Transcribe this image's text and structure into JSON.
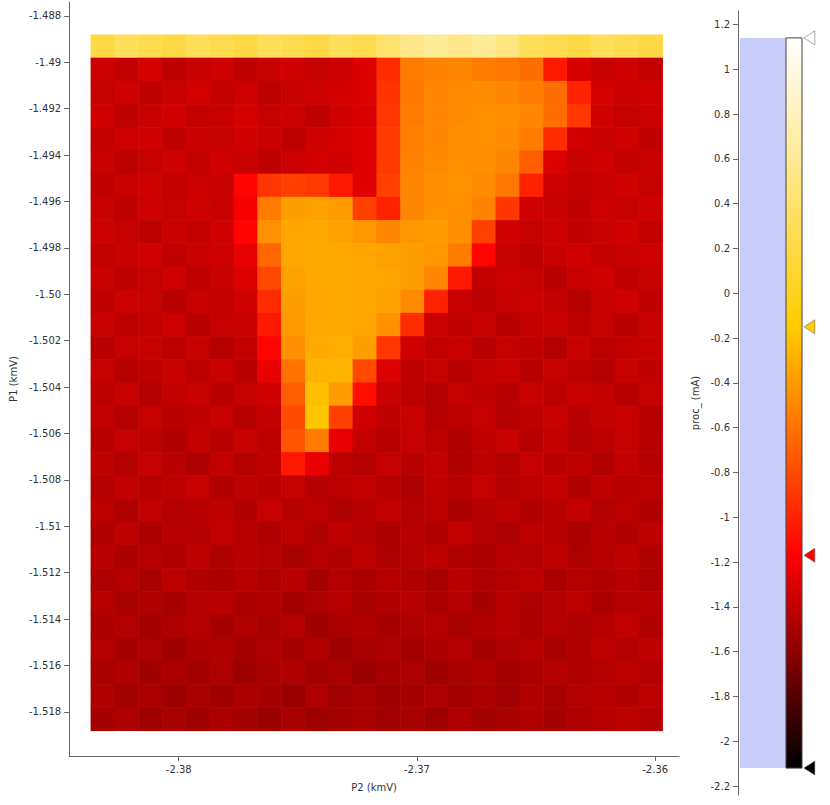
{
  "chart_data": {
    "type": "heatmap",
    "xlabel": "P2 (kmV)",
    "ylabel": "P1 (kmV)",
    "xlim": [
      -2.3846,
      -2.359
    ],
    "ylim": [
      -1.5199,
      -1.4874
    ],
    "xticks": [
      -2.38,
      -2.37,
      -2.36
    ],
    "yticks": [
      -1.488,
      -1.49,
      -1.492,
      -1.494,
      -1.496,
      -1.498,
      {
        "value": -1.5,
        "label": "-1.50"
      },
      -1.502,
      -1.504,
      -1.506,
      -1.508,
      -1.51,
      -1.512,
      -1.514,
      -1.516,
      -1.518
    ],
    "x": [
      -2.3832,
      -2.3822,
      -2.3812,
      -2.3802,
      -2.3792,
      -2.3782,
      -2.3772,
      -2.3762,
      -2.3752,
      -2.3742,
      -2.3732,
      -2.3722,
      -2.3712,
      -2.3702,
      -2.3692,
      -2.3682,
      -2.3672,
      -2.3662,
      -2.3652,
      -2.3642,
      -2.3632,
      -2.3622,
      -2.3612,
      -2.3602
    ],
    "y": [
      -1.4893,
      -1.4903,
      -1.4913,
      -1.4923,
      -1.4933,
      -1.4943,
      -1.4953,
      -1.4963,
      -1.4973,
      -1.4983,
      -1.4993,
      -1.5003,
      -1.5013,
      -1.5023,
      -1.5033,
      -1.5043,
      -1.5053,
      -1.5063,
      -1.5073,
      -1.5083,
      -1.5093,
      -1.5103,
      -1.5113,
      -1.5123,
      -1.5133,
      -1.5143,
      -1.5153,
      -1.5163,
      -1.5173,
      -1.5183
    ],
    "values": [
      [
        0.2,
        0.3,
        0.25,
        0.2,
        0.3,
        0.25,
        0.2,
        0.3,
        0.25,
        0.2,
        0.3,
        0.25,
        0.4,
        0.55,
        0.6,
        0.55,
        0.6,
        0.5,
        0.3,
        0.25,
        0.2,
        0.3,
        0.25,
        0.2
      ],
      [
        -1.36,
        -1.4,
        -1.33,
        -1.42,
        -1.38,
        -1.35,
        -1.41,
        -1.37,
        -1.34,
        -1.39,
        -1.36,
        -1.3,
        -0.95,
        -0.55,
        -0.52,
        -0.5,
        -0.55,
        -0.58,
        -0.62,
        -1.05,
        -1.32,
        -1.38,
        -1.35,
        -1.4
      ],
      [
        -1.39,
        -1.35,
        -1.41,
        -1.37,
        -1.33,
        -1.4,
        -1.36,
        -1.42,
        -1.38,
        -1.35,
        -1.33,
        -1.3,
        -0.92,
        -0.56,
        -0.5,
        -0.48,
        -0.47,
        -0.5,
        -0.55,
        -0.62,
        -1.0,
        -1.33,
        -1.37,
        -1.34
      ],
      [
        -1.35,
        -1.41,
        -1.38,
        -1.34,
        -1.4,
        -1.37,
        -1.33,
        -1.39,
        -1.36,
        -1.41,
        -1.35,
        -1.31,
        -0.9,
        -0.55,
        -0.5,
        -0.47,
        -0.45,
        -0.46,
        -0.5,
        -0.62,
        -0.9,
        -1.34,
        -1.39,
        -1.36
      ],
      [
        -1.4,
        -1.36,
        -1.34,
        -1.41,
        -1.37,
        -1.39,
        -1.35,
        -1.38,
        -1.42,
        -1.36,
        -1.33,
        -1.29,
        -0.88,
        -0.54,
        -0.5,
        -0.46,
        -0.45,
        -0.47,
        -0.55,
        -0.95,
        -1.33,
        -1.38,
        -1.35,
        -1.41
      ],
      [
        -1.37,
        -1.42,
        -1.39,
        -1.35,
        -1.4,
        -1.34,
        -1.38,
        -1.41,
        -1.36,
        -1.33,
        -1.35,
        -1.3,
        -0.88,
        -0.52,
        -0.48,
        -0.45,
        -0.46,
        -0.5,
        -0.7,
        -1.3,
        -1.38,
        -1.35,
        -1.4,
        -1.37
      ],
      [
        -1.41,
        -1.37,
        -1.35,
        -1.4,
        -1.36,
        -1.38,
        -1.15,
        -0.9,
        -0.85,
        -0.88,
        -1.05,
        -1.28,
        -0.85,
        -0.5,
        -0.46,
        -0.44,
        -0.47,
        -0.58,
        -1.0,
        -1.36,
        -1.4,
        -1.37,
        -1.34,
        -1.39
      ],
      [
        -1.38,
        -1.41,
        -1.36,
        -1.39,
        -1.34,
        -1.37,
        -1.2,
        -0.55,
        -0.38,
        -0.36,
        -0.4,
        -0.85,
        -1.0,
        -0.5,
        -0.45,
        -0.45,
        -0.52,
        -0.9,
        -1.34,
        -1.38,
        -1.41,
        -1.36,
        -1.39,
        -1.35
      ],
      [
        -1.36,
        -1.39,
        -1.42,
        -1.37,
        -1.4,
        -1.35,
        -1.15,
        -0.45,
        -0.35,
        -0.33,
        -0.36,
        -0.42,
        -0.5,
        -0.42,
        -0.4,
        -0.46,
        -0.85,
        -1.35,
        -1.39,
        -1.36,
        -1.41,
        -1.38,
        -1.35,
        -1.4
      ],
      [
        -1.4,
        -1.37,
        -1.34,
        -1.41,
        -1.38,
        -1.36,
        -1.25,
        -0.65,
        -0.34,
        -0.32,
        -0.33,
        -0.35,
        -0.36,
        -0.38,
        -0.42,
        -0.55,
        -1.15,
        -1.38,
        -1.42,
        -1.37,
        -1.34,
        -1.4,
        -1.38,
        -1.36
      ],
      [
        -1.37,
        -1.42,
        -1.39,
        -1.35,
        -1.41,
        -1.38,
        -1.3,
        -0.8,
        -0.36,
        -0.33,
        -0.32,
        -0.34,
        -0.35,
        -0.38,
        -0.5,
        -1.05,
        -1.4,
        -1.36,
        -1.39,
        -1.43,
        -1.37,
        -1.35,
        -1.41,
        -1.38
      ],
      [
        -1.41,
        -1.36,
        -1.38,
        -1.43,
        -1.37,
        -1.4,
        -1.35,
        -0.95,
        -0.38,
        -0.34,
        -0.33,
        -0.34,
        -0.36,
        -0.48,
        -1.0,
        -1.38,
        -1.42,
        -1.39,
        -1.36,
        -1.4,
        -1.44,
        -1.38,
        -1.35,
        -1.41
      ],
      [
        -1.38,
        -1.42,
        -1.4,
        -1.36,
        -1.43,
        -1.39,
        -1.37,
        -1.05,
        -0.4,
        -0.33,
        -0.32,
        -0.35,
        -0.45,
        -0.95,
        -1.36,
        -1.41,
        -1.38,
        -1.44,
        -1.4,
        -1.37,
        -1.42,
        -1.39,
        -1.43,
        -1.38
      ],
      [
        -1.43,
        -1.39,
        -1.37,
        -1.42,
        -1.38,
        -1.44,
        -1.4,
        -1.15,
        -0.45,
        -0.32,
        -0.3,
        -0.38,
        -0.9,
        -1.34,
        -1.4,
        -1.37,
        -1.43,
        -1.39,
        -1.41,
        -1.45,
        -1.38,
        -1.42,
        -1.4,
        -1.37
      ],
      [
        -1.39,
        -1.44,
        -1.41,
        -1.38,
        -1.42,
        -1.37,
        -1.43,
        -1.25,
        -0.6,
        -0.28,
        -0.27,
        -0.8,
        -1.3,
        -1.41,
        -1.38,
        -1.44,
        -1.4,
        -1.37,
        -1.43,
        -1.39,
        -1.42,
        -1.45,
        -1.38,
        -1.41
      ],
      [
        -1.42,
        -1.38,
        -1.45,
        -1.4,
        -1.37,
        -1.43,
        -1.39,
        -1.35,
        -0.7,
        -0.22,
        -0.4,
        -1.1,
        -1.38,
        -1.42,
        -1.45,
        -1.39,
        -1.41,
        -1.44,
        -1.38,
        -1.42,
        -1.37,
        -1.4,
        -1.44,
        -1.39
      ],
      [
        -1.4,
        -1.45,
        -1.39,
        -1.43,
        -1.41,
        -1.38,
        -1.44,
        -1.4,
        -0.8,
        -0.18,
        -0.85,
        -1.35,
        -1.41,
        -1.38,
        -1.44,
        -1.42,
        -1.39,
        -1.45,
        -1.41,
        -1.38,
        -1.43,
        -1.4,
        -1.37,
        -1.44
      ],
      [
        -1.44,
        -1.39,
        -1.42,
        -1.46,
        -1.4,
        -1.43,
        -1.38,
        -1.42,
        -0.75,
        -0.55,
        -1.25,
        -1.4,
        -1.44,
        -1.39,
        -1.42,
        -1.46,
        -1.41,
        -1.38,
        -1.44,
        -1.4,
        -1.45,
        -1.42,
        -1.39,
        -1.43
      ],
      [
        -1.41,
        -1.45,
        -1.39,
        -1.43,
        -1.47,
        -1.4,
        -1.44,
        -1.41,
        -1.05,
        -1.25,
        -1.42,
        -1.45,
        -1.39,
        -1.43,
        -1.4,
        -1.46,
        -1.42,
        -1.44,
        -1.39,
        -1.43,
        -1.41,
        -1.46,
        -1.4,
        -1.44
      ],
      [
        -1.45,
        -1.4,
        -1.44,
        -1.42,
        -1.38,
        -1.46,
        -1.41,
        -1.43,
        -1.39,
        -1.45,
        -1.42,
        -1.4,
        -1.44,
        -1.47,
        -1.41,
        -1.43,
        -1.39,
        -1.45,
        -1.42,
        -1.4,
        -1.46,
        -1.41,
        -1.44,
        -1.42
      ],
      [
        -1.42,
        -1.47,
        -1.4,
        -1.45,
        -1.43,
        -1.41,
        -1.46,
        -1.39,
        -1.44,
        -1.42,
        -1.47,
        -1.43,
        -1.4,
        -1.45,
        -1.42,
        -1.48,
        -1.44,
        -1.41,
        -1.46,
        -1.43,
        -1.4,
        -1.45,
        -1.42,
        -1.46
      ],
      [
        -1.46,
        -1.41,
        -1.48,
        -1.43,
        -1.45,
        -1.4,
        -1.44,
        -1.47,
        -1.42,
        -1.46,
        -1.41,
        -1.45,
        -1.48,
        -1.43,
        -1.46,
        -1.4,
        -1.45,
        -1.47,
        -1.42,
        -1.44,
        -1.48,
        -1.43,
        -1.46,
        -1.41
      ],
      [
        -1.43,
        -1.48,
        -1.44,
        -1.46,
        -1.41,
        -1.47,
        -1.43,
        -1.45,
        -1.49,
        -1.44,
        -1.46,
        -1.42,
        -1.47,
        -1.44,
        -1.41,
        -1.46,
        -1.48,
        -1.43,
        -1.45,
        -1.42,
        -1.47,
        -1.44,
        -1.41,
        -1.46
      ],
      [
        -1.47,
        -1.44,
        -1.49,
        -1.42,
        -1.46,
        -1.48,
        -1.44,
        -1.47,
        -1.43,
        -1.5,
        -1.45,
        -1.48,
        -1.44,
        -1.46,
        -1.49,
        -1.43,
        -1.47,
        -1.45,
        -1.42,
        -1.48,
        -1.44,
        -1.46,
        -1.43,
        -1.47
      ],
      [
        -1.44,
        -1.49,
        -1.46,
        -1.5,
        -1.45,
        -1.43,
        -1.48,
        -1.46,
        -1.51,
        -1.47,
        -1.44,
        -1.49,
        -1.46,
        -1.43,
        -1.48,
        -1.45,
        -1.5,
        -1.44,
        -1.47,
        -1.45,
        -1.42,
        -1.48,
        -1.45,
        -1.43
      ],
      [
        -1.48,
        -1.45,
        -1.51,
        -1.47,
        -1.44,
        -1.5,
        -1.46,
        -1.49,
        -1.45,
        -1.52,
        -1.48,
        -1.46,
        -1.5,
        -1.47,
        -1.44,
        -1.49,
        -1.46,
        -1.43,
        -1.48,
        -1.45,
        -1.47,
        -1.44,
        -1.4,
        -1.46
      ],
      [
        -1.45,
        -1.5,
        -1.47,
        -1.52,
        -1.48,
        -1.46,
        -1.51,
        -1.47,
        -1.5,
        -1.46,
        -1.53,
        -1.49,
        -1.47,
        -1.51,
        -1.48,
        -1.45,
        -1.5,
        -1.47,
        -1.44,
        -1.49,
        -1.46,
        -1.42,
        -1.45,
        -1.41
      ],
      [
        -1.49,
        -1.46,
        -1.52,
        -1.48,
        -1.51,
        -1.47,
        -1.53,
        -1.49,
        -1.46,
        -1.51,
        -1.48,
        -1.54,
        -1.5,
        -1.47,
        -1.52,
        -1.49,
        -1.46,
        -1.51,
        -1.48,
        -1.45,
        -1.47,
        -1.44,
        -1.42,
        -1.45
      ],
      [
        -1.46,
        -1.51,
        -1.48,
        -1.53,
        -1.49,
        -1.52,
        -1.48,
        -1.5,
        -1.54,
        -1.47,
        -1.52,
        -1.49,
        -1.53,
        -1.5,
        -1.47,
        -1.51,
        -1.48,
        -1.52,
        -1.46,
        -1.49,
        -1.45,
        -1.43,
        -1.46,
        -1.42
      ],
      [
        -1.5,
        -1.47,
        -1.53,
        -1.49,
        -1.52,
        -1.48,
        -1.51,
        -1.54,
        -1.49,
        -1.53,
        -1.5,
        -1.48,
        -1.52,
        -1.49,
        -1.53,
        -1.47,
        -1.51,
        -1.49,
        -1.46,
        -1.5,
        -1.47,
        -1.44,
        -1.42,
        -1.45
      ]
    ],
    "colorbar": {
      "label": "proc_ (mA)",
      "lim": [
        -2.24,
        1.26
      ],
      "ticks": [
        -2.2,
        -2,
        -1.8,
        -1.6,
        -1.4,
        -1.2,
        -1,
        -0.8,
        -0.6,
        -0.4,
        -0.2,
        0,
        0.2,
        0.4,
        0.6,
        0.8,
        1,
        1.2
      ],
      "range": [
        -2.12,
        1.14
      ],
      "stops": [
        {
          "value": -2.12,
          "color": "#000000"
        },
        {
          "value": -1.17,
          "color": "#ff0000"
        },
        {
          "value": -0.15,
          "color": "#ffcc00"
        },
        {
          "value": 1.14,
          "color": "#ffffff"
        }
      ]
    }
  }
}
